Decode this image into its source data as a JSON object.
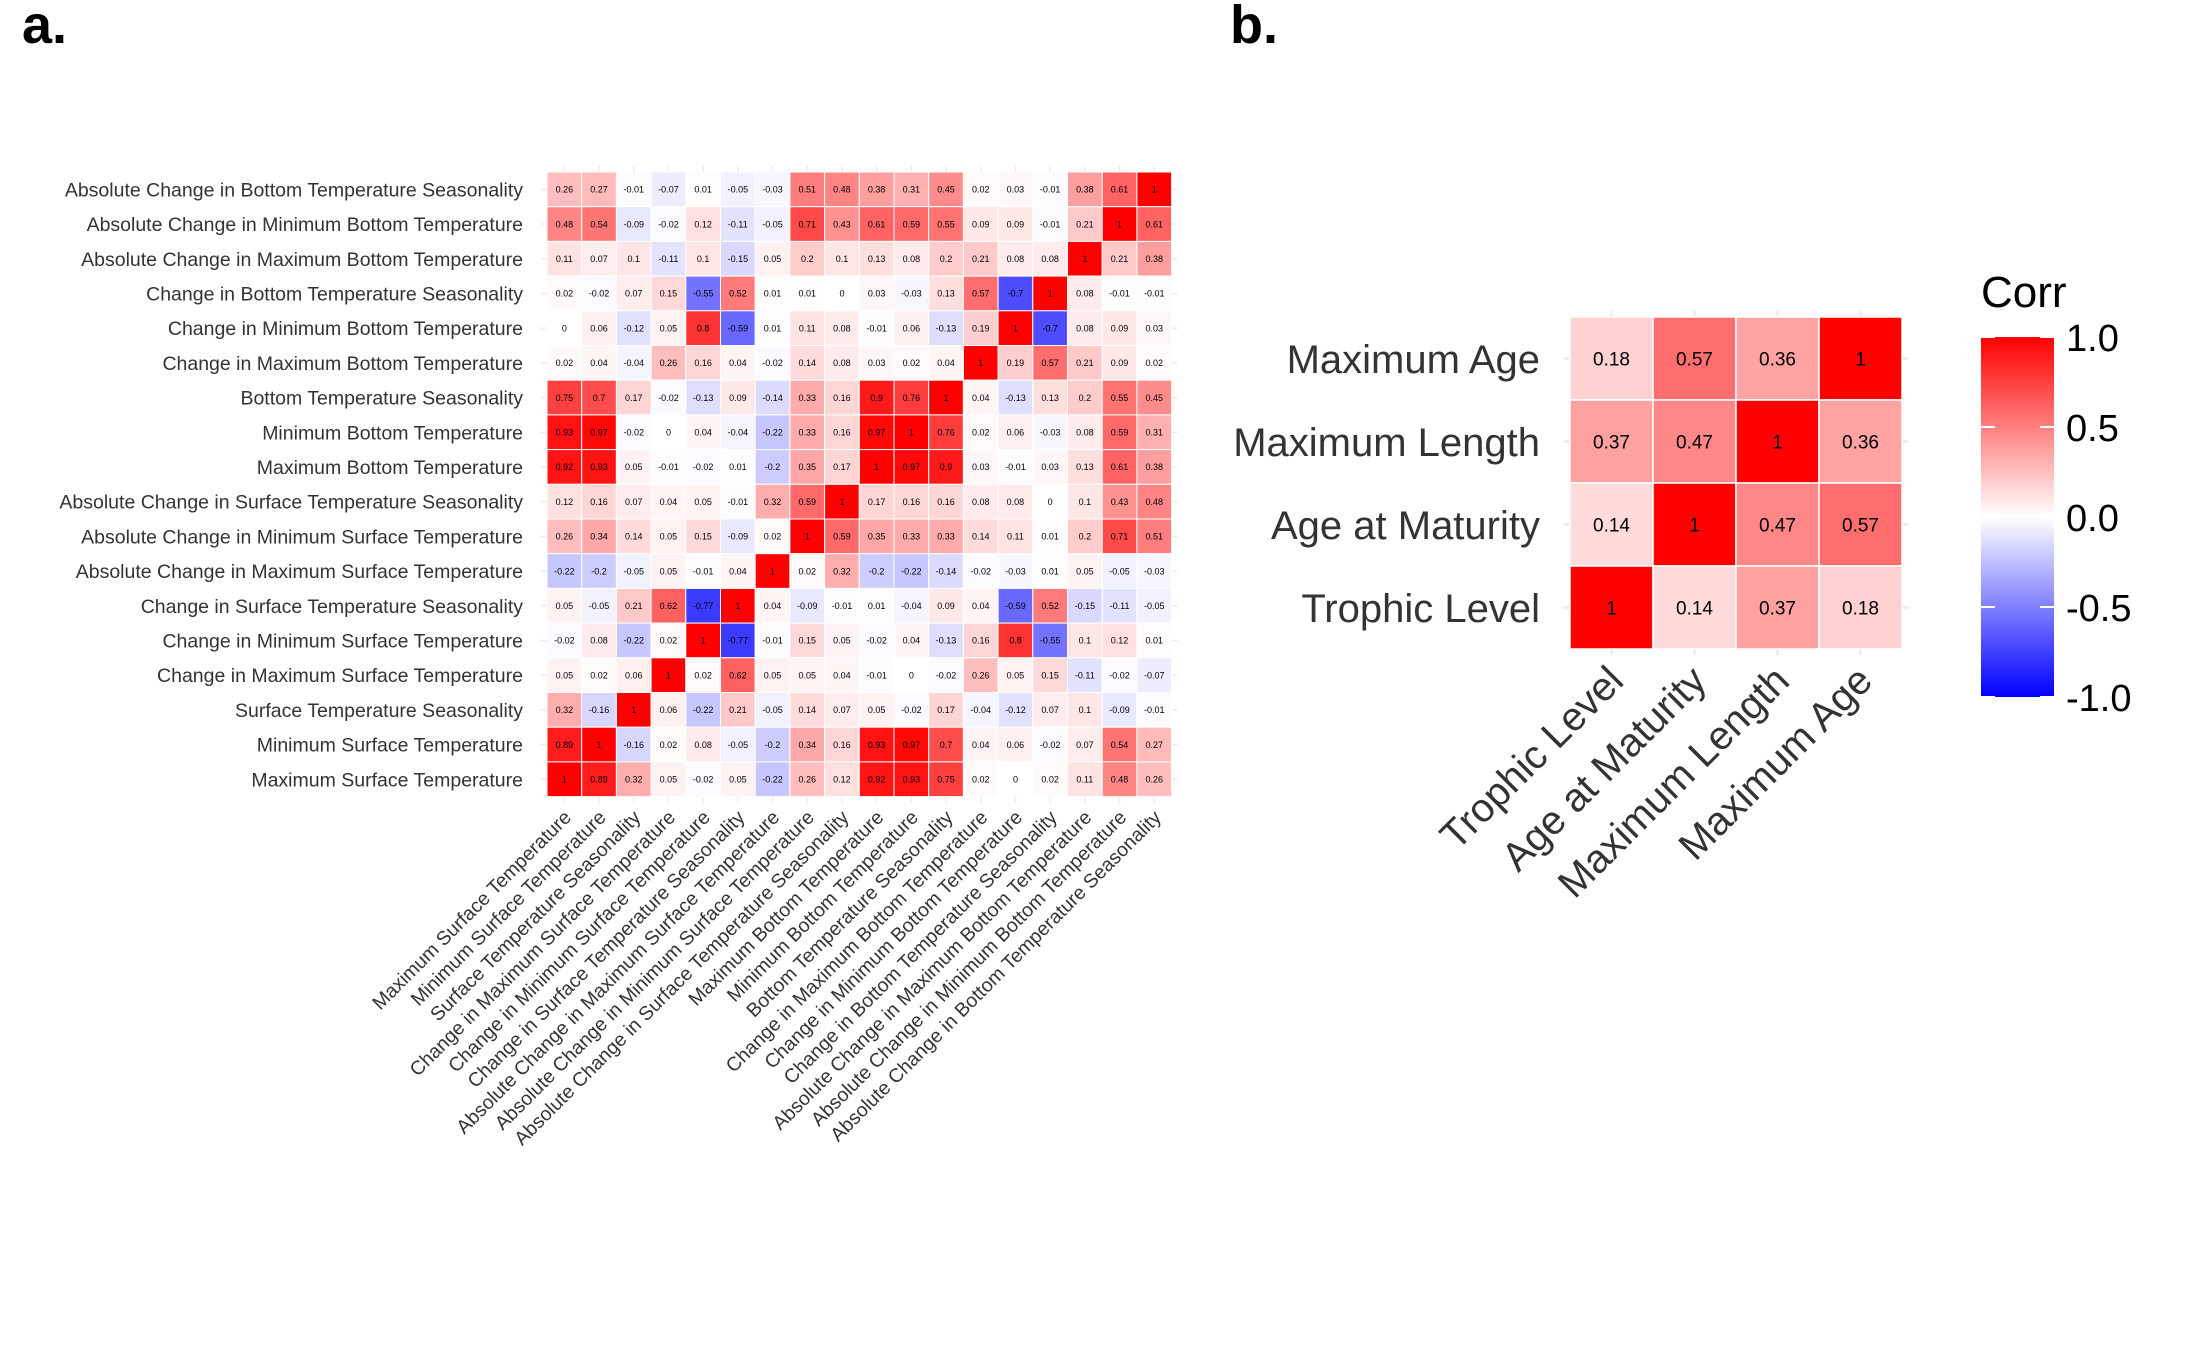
{
  "panel_labels": {
    "a": "a.",
    "b": "b."
  },
  "colors": {
    "low": "#0000ff",
    "mid": "#ffffff",
    "high": "#ff0000",
    "text": "#000000",
    "axis_text": "#333333"
  },
  "chart_data": [
    {
      "type": "heatmap",
      "panel": "a.",
      "title": "",
      "variables": [
        "Maximum Surface Temperature",
        "Minimum Surface Temperature",
        "Surface Temperature Seasonality",
        "Change in Maximum Surface Temperature",
        "Change in Minimum Surface Temperature",
        "Change in Surface Temperature Seasonality",
        "Absolute Change in Maximum Surface Temperature",
        "Absolute Change in Minimum Surface Temperature",
        "Absolute Change in Surface Temperature Seasonality",
        "Maximum Bottom Temperature",
        "Minimum Bottom Temperature",
        "Bottom Temperature Seasonality",
        "Change in Maximum Bottom Temperature",
        "Change in Minimum Bottom Temperature",
        "Change in Bottom Temperature Seasonality",
        "Absolute Change in Maximum Bottom Temperature",
        "Absolute Change in Minimum Bottom Temperature",
        "Absolute Change in Bottom Temperature Seasonality"
      ],
      "matrix": [
        [
          1,
          0.89,
          0.32,
          0.05,
          -0.02,
          0.05,
          -0.22,
          0.26,
          0.12,
          0.92,
          0.93,
          0.75,
          0.02,
          0,
          0.02,
          0.11,
          0.48,
          0.26
        ],
        [
          0.89,
          1,
          -0.16,
          0.02,
          0.08,
          -0.05,
          -0.2,
          0.34,
          0.16,
          0.93,
          0.97,
          0.7,
          0.04,
          0.06,
          -0.02,
          0.07,
          0.54,
          0.27
        ],
        [
          0.32,
          -0.16,
          1,
          0.06,
          -0.22,
          0.21,
          -0.05,
          0.14,
          0.07,
          0.05,
          -0.02,
          0.17,
          -0.04,
          -0.12,
          0.07,
          0.1,
          -0.09,
          -0.01
        ],
        [
          0.05,
          0.02,
          0.06,
          1,
          0.02,
          0.62,
          0.05,
          0.05,
          0.04,
          -0.01,
          0,
          -0.02,
          0.26,
          0.05,
          0.15,
          -0.11,
          -0.02,
          -0.07
        ],
        [
          -0.02,
          0.08,
          -0.22,
          0.02,
          1,
          -0.77,
          -0.01,
          0.15,
          0.05,
          -0.02,
          0.04,
          -0.13,
          0.16,
          0.8,
          -0.55,
          0.1,
          0.12,
          0.01
        ],
        [
          0.05,
          -0.05,
          0.21,
          0.62,
          -0.77,
          1,
          0.04,
          -0.09,
          -0.01,
          0.01,
          -0.04,
          0.09,
          0.04,
          -0.59,
          0.52,
          -0.15,
          -0.11,
          -0.05
        ],
        [
          -0.22,
          -0.2,
          -0.05,
          0.05,
          -0.01,
          0.04,
          1,
          0.02,
          0.32,
          -0.2,
          -0.22,
          -0.14,
          -0.02,
          -0.03,
          0.01,
          0.05,
          -0.05,
          -0.03
        ],
        [
          0.26,
          0.34,
          0.14,
          0.05,
          0.15,
          -0.09,
          0.02,
          1,
          0.59,
          0.35,
          0.33,
          0.33,
          0.14,
          0.11,
          0.01,
          0.2,
          0.71,
          0.51
        ],
        [
          0.12,
          0.16,
          0.07,
          0.04,
          0.05,
          -0.01,
          0.32,
          0.59,
          1,
          0.17,
          0.16,
          0.16,
          0.08,
          0.08,
          0,
          0.1,
          0.43,
          0.48
        ],
        [
          0.92,
          0.93,
          0.05,
          -0.01,
          -0.02,
          0.01,
          -0.2,
          0.35,
          0.17,
          1,
          0.97,
          0.9,
          0.03,
          -0.01,
          0.03,
          0.13,
          0.61,
          0.38
        ],
        [
          0.93,
          0.97,
          -0.02,
          0,
          0.04,
          -0.04,
          -0.22,
          0.33,
          0.16,
          0.97,
          1,
          0.76,
          0.02,
          0.06,
          -0.03,
          0.08,
          0.59,
          0.31
        ],
        [
          0.75,
          0.7,
          0.17,
          -0.02,
          -0.13,
          0.09,
          -0.14,
          0.33,
          0.16,
          0.9,
          0.76,
          1,
          0.04,
          -0.13,
          0.13,
          0.2,
          0.55,
          0.45
        ],
        [
          0.02,
          0.04,
          -0.04,
          0.26,
          0.16,
          0.04,
          -0.02,
          0.14,
          0.08,
          0.03,
          0.02,
          0.04,
          1,
          0.19,
          0.57,
          0.21,
          0.09,
          0.02
        ],
        [
          0,
          0.06,
          -0.12,
          0.05,
          0.8,
          -0.59,
          0.01,
          0.11,
          0.08,
          -0.01,
          0.06,
          -0.13,
          0.19,
          1,
          -0.7,
          0.08,
          0.09,
          0.03
        ],
        [
          0.02,
          -0.02,
          0.07,
          0.15,
          -0.55,
          0.52,
          0.01,
          0.01,
          0,
          0.03,
          -0.03,
          0.13,
          0.57,
          -0.7,
          1,
          0.08,
          -0.01,
          -0.01
        ],
        [
          0.11,
          0.07,
          0.1,
          -0.11,
          0.1,
          -0.15,
          0.05,
          0.2,
          0.1,
          0.13,
          0.08,
          0.2,
          0.21,
          0.08,
          0.08,
          1,
          0.21,
          0.38
        ],
        [
          0.48,
          0.54,
          -0.09,
          -0.02,
          0.12,
          -0.11,
          -0.05,
          0.71,
          0.43,
          0.61,
          0.59,
          0.55,
          0.09,
          0.09,
          -0.01,
          0.21,
          1,
          0.61
        ],
        [
          0.26,
          0.27,
          -0.01,
          -0.07,
          0.01,
          -0.05,
          -0.03,
          0.51,
          0.48,
          0.38,
          0.31,
          0.45,
          0.02,
          0.03,
          -0.01,
          0.38,
          0.61,
          1
        ]
      ],
      "value_range": [
        -1,
        1
      ]
    },
    {
      "type": "heatmap",
      "panel": "b.",
      "title": "",
      "variables": [
        "Trophic Level",
        "Age at Maturity",
        "Maximum Length",
        "Maximum Age"
      ],
      "matrix": [
        [
          1,
          0.14,
          0.37,
          0.18
        ],
        [
          0.14,
          1,
          0.47,
          0.57
        ],
        [
          0.37,
          0.47,
          1,
          0.36
        ],
        [
          0.18,
          0.57,
          0.36,
          1
        ]
      ],
      "value_range": [
        -1,
        1
      ],
      "legend": {
        "title": "Corr",
        "ticks": [
          "1.0",
          "0.5",
          "0.0",
          "-0.5",
          "-1.0"
        ],
        "tick_values": [
          1,
          0.5,
          0,
          -0.5,
          -1
        ],
        "placement": "right"
      }
    }
  ]
}
